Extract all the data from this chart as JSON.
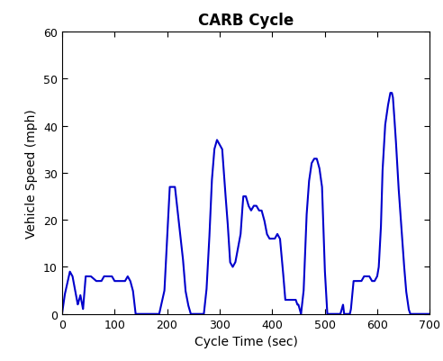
{
  "title": "CARB Cycle",
  "xlabel": "Cycle Time (sec)",
  "ylabel": "Vehicle Speed (mph)",
  "line_color": "#0000CC",
  "line_width": 1.5,
  "xlim": [
    0,
    700
  ],
  "ylim": [
    0,
    60
  ],
  "xticks": [
    0,
    100,
    200,
    300,
    400,
    500,
    600,
    700
  ],
  "yticks": [
    0,
    10,
    20,
    30,
    40,
    50,
    60
  ],
  "title_fontsize": 12,
  "label_fontsize": 10,
  "tick_fontsize": 9,
  "background_color": "#ffffff",
  "carb_cycle": [
    [
      0,
      0
    ],
    [
      5,
      4
    ],
    [
      15,
      9
    ],
    [
      20,
      8
    ],
    [
      30,
      2
    ],
    [
      35,
      4
    ],
    [
      40,
      1
    ],
    [
      45,
      8
    ],
    [
      55,
      8
    ],
    [
      65,
      7
    ],
    [
      75,
      7
    ],
    [
      80,
      8
    ],
    [
      90,
      8
    ],
    [
      95,
      8
    ],
    [
      100,
      7
    ],
    [
      110,
      7
    ],
    [
      120,
      7
    ],
    [
      125,
      8
    ],
    [
      130,
      7
    ],
    [
      135,
      5
    ],
    [
      140,
      0
    ],
    [
      145,
      0
    ],
    [
      155,
      0
    ],
    [
      165,
      0
    ],
    [
      175,
      0
    ],
    [
      185,
      0
    ],
    [
      195,
      5
    ],
    [
      205,
      27
    ],
    [
      215,
      27
    ],
    [
      220,
      22
    ],
    [
      225,
      17
    ],
    [
      230,
      12
    ],
    [
      235,
      5
    ],
    [
      240,
      2
    ],
    [
      245,
      0
    ],
    [
      255,
      0
    ],
    [
      265,
      0
    ],
    [
      270,
      0
    ],
    [
      275,
      5
    ],
    [
      280,
      15
    ],
    [
      285,
      28
    ],
    [
      290,
      35
    ],
    [
      295,
      37
    ],
    [
      300,
      36
    ],
    [
      305,
      35
    ],
    [
      310,
      27
    ],
    [
      315,
      20
    ],
    [
      320,
      11
    ],
    [
      325,
      10
    ],
    [
      330,
      11
    ],
    [
      335,
      14
    ],
    [
      340,
      17
    ],
    [
      345,
      25
    ],
    [
      350,
      25
    ],
    [
      355,
      23
    ],
    [
      360,
      22
    ],
    [
      365,
      23
    ],
    [
      370,
      23
    ],
    [
      375,
      22
    ],
    [
      380,
      22
    ],
    [
      385,
      20
    ],
    [
      390,
      17
    ],
    [
      395,
      16
    ],
    [
      400,
      16
    ],
    [
      405,
      16
    ],
    [
      410,
      17
    ],
    [
      415,
      16
    ],
    [
      420,
      10
    ],
    [
      425,
      3
    ],
    [
      430,
      3
    ],
    [
      435,
      3
    ],
    [
      440,
      3
    ],
    [
      445,
      3
    ],
    [
      448,
      2
    ],
    [
      450,
      2
    ],
    [
      455,
      0
    ],
    [
      460,
      5
    ],
    [
      465,
      20
    ],
    [
      470,
      28
    ],
    [
      475,
      32
    ],
    [
      480,
      33
    ],
    [
      485,
      33
    ],
    [
      490,
      31
    ],
    [
      495,
      27
    ],
    [
      500,
      10
    ],
    [
      505,
      0
    ],
    [
      510,
      0
    ],
    [
      515,
      0
    ],
    [
      520,
      0
    ],
    [
      525,
      0
    ],
    [
      530,
      0
    ],
    [
      535,
      2
    ],
    [
      537,
      0
    ],
    [
      540,
      0
    ],
    [
      545,
      0
    ],
    [
      548,
      0
    ],
    [
      550,
      1
    ],
    [
      555,
      7
    ],
    [
      560,
      7
    ],
    [
      565,
      7
    ],
    [
      570,
      7
    ],
    [
      575,
      8
    ],
    [
      580,
      8
    ],
    [
      585,
      8
    ],
    [
      590,
      7
    ],
    [
      595,
      7
    ],
    [
      600,
      8
    ],
    [
      603,
      10
    ],
    [
      607,
      18
    ],
    [
      610,
      30
    ],
    [
      615,
      40
    ],
    [
      620,
      44
    ],
    [
      625,
      47
    ],
    [
      628,
      47
    ],
    [
      630,
      46
    ],
    [
      635,
      38
    ],
    [
      640,
      28
    ],
    [
      645,
      20
    ],
    [
      650,
      12
    ],
    [
      655,
      5
    ],
    [
      660,
      1
    ],
    [
      663,
      0
    ],
    [
      670,
      0
    ],
    [
      680,
      0
    ],
    [
      690,
      0
    ],
    [
      700,
      0
    ]
  ]
}
